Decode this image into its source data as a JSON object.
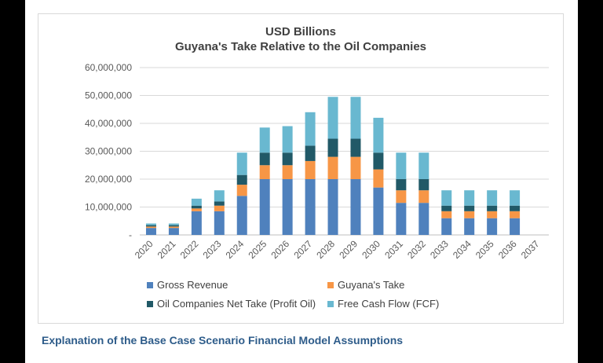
{
  "chart_data": {
    "type": "bar",
    "stacked": true,
    "title": "USD Billions",
    "subtitle": "Guyana's Take Relative to the Oil Companies",
    "categories": [
      "2020",
      "2021",
      "2022",
      "2023",
      "2024",
      "2025",
      "2026",
      "2027",
      "2028",
      "2029",
      "2030",
      "2031",
      "2032",
      "2033",
      "2034",
      "2035",
      "2036",
      "2037"
    ],
    "y_ticks": [
      "-",
      "10,000,000",
      "20,000,000",
      "30,000,000",
      "40,000,000",
      "50,000,000",
      "60,000,000"
    ],
    "ylim": [
      0,
      60000000
    ],
    "grid": true,
    "legend_position": "bottom",
    "series": [
      {
        "name": "Gross Revenue",
        "color": "#4f81bd",
        "values": [
          2500000,
          2500000,
          8500000,
          8500000,
          14000000,
          20000000,
          20000000,
          20000000,
          20000000,
          20000000,
          17000000,
          11500000,
          11500000,
          6000000,
          6000000,
          6000000,
          6000000,
          0
        ]
      },
      {
        "name": "Guyana's Take",
        "color": "#f79646",
        "values": [
          500000,
          500000,
          1000000,
          2000000,
          4000000,
          5000000,
          5000000,
          6500000,
          8000000,
          8000000,
          6500000,
          4500000,
          4500000,
          2500000,
          2500000,
          2500000,
          2500000,
          0
        ]
      },
      {
        "name": "Oil Companies Net Take (Profit Oil)",
        "color": "#215967",
        "values": [
          500000,
          500000,
          1000000,
          1500000,
          3500000,
          4500000,
          4500000,
          5500000,
          6500000,
          6500000,
          6000000,
          4000000,
          4000000,
          2000000,
          2000000,
          2000000,
          2000000,
          0
        ]
      },
      {
        "name": "Free Cash Flow (FCF)",
        "color": "#69b8d0",
        "values": [
          600000,
          600000,
          2500000,
          4000000,
          8000000,
          9000000,
          9500000,
          12000000,
          15000000,
          15000000,
          12500000,
          9500000,
          9500000,
          5500000,
          5500000,
          5500000,
          5500000,
          0
        ]
      }
    ]
  },
  "footer": {
    "heading": "Explanation of the Base Case Scenario Financial Model Assumptions"
  }
}
